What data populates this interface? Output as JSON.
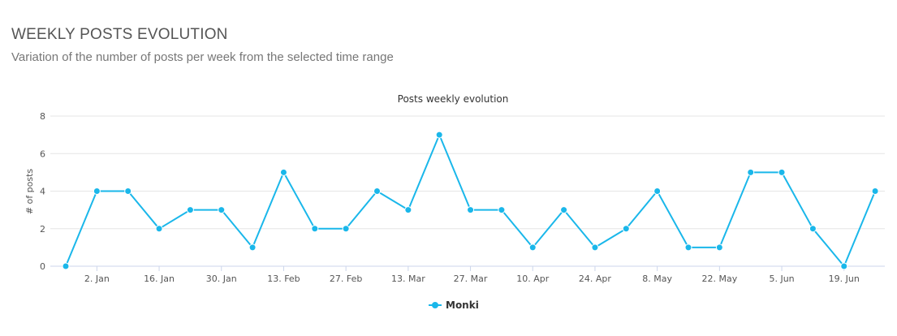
{
  "header": {
    "title": "WEEKLY POSTS EVOLUTION",
    "subtitle": "Variation of the number of posts per week from the selected time range"
  },
  "chart_data": {
    "type": "line",
    "title": "Posts weekly evolution",
    "xlabel": "",
    "ylabel": "# of posts",
    "ylim": [
      0,
      8
    ],
    "yticks": [
      0,
      2,
      4,
      6,
      8
    ],
    "xtick_labels": [
      "2. Jan",
      "16. Jan",
      "30. Jan",
      "13. Feb",
      "27. Feb",
      "13. Mar",
      "27. Mar",
      "10. Apr",
      "24. Apr",
      "8. May",
      "22. May",
      "5. Jun",
      "19. Jun"
    ],
    "grid": true,
    "legend_position": "bottom-center",
    "series": [
      {
        "name": "Monki",
        "color": "#1ab7ea",
        "values": [
          0,
          4,
          4,
          2,
          3,
          3,
          1,
          5,
          2,
          2,
          4,
          3,
          7,
          3,
          3,
          1,
          3,
          1,
          2,
          4,
          1,
          1,
          5,
          5,
          2,
          0,
          4
        ]
      }
    ]
  }
}
